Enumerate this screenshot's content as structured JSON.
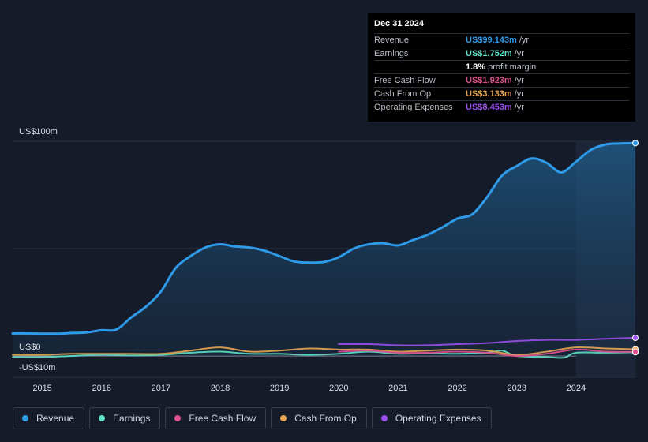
{
  "tooltip": {
    "date": "Dec 31 2024",
    "rows": [
      {
        "label": "Revenue",
        "value": "US$99.143m",
        "unit": "/yr",
        "color": "#2f9ae8"
      },
      {
        "label": "Earnings",
        "value": "US$1.752m",
        "unit": "/yr",
        "color": "#5fe0c8"
      },
      {
        "label": "",
        "value": "1.8%",
        "unit": "profit margin",
        "color": "#ffffff"
      },
      {
        "label": "Free Cash Flow",
        "value": "US$1.923m",
        "unit": "/yr",
        "color": "#e0508e"
      },
      {
        "label": "Cash From Op",
        "value": "US$3.133m",
        "unit": "/yr",
        "color": "#e8a552"
      },
      {
        "label": "Operating Expenses",
        "value": "US$8.453m",
        "unit": "/yr",
        "color": "#9b4ff0"
      }
    ]
  },
  "legend": [
    {
      "label": "Revenue",
      "color": "#2f9ae8"
    },
    {
      "label": "Earnings",
      "color": "#5fe0c8"
    },
    {
      "label": "Free Cash Flow",
      "color": "#e0508e"
    },
    {
      "label": "Cash From Op",
      "color": "#e8a552"
    },
    {
      "label": "Operating Expenses",
      "color": "#9b4ff0"
    }
  ],
  "chart_data": {
    "type": "area",
    "title": "",
    "xlabel": "",
    "ylabel": "",
    "ylim": [
      -10,
      100
    ],
    "y_tick_labels": [
      {
        "value": 100,
        "label": "US$100m"
      },
      {
        "value": 0,
        "label": "US$0"
      },
      {
        "value": -10,
        "label": "-US$10m"
      }
    ],
    "x_tick_labels": [
      "2015",
      "2016",
      "2017",
      "2018",
      "2019",
      "2020",
      "2021",
      "2022",
      "2023",
      "2024"
    ],
    "x_ticks": [
      2015,
      2016,
      2017,
      2018,
      2019,
      2020,
      2021,
      2022,
      2023,
      2024
    ],
    "xlim": [
      2014.5,
      2025.0
    ],
    "highlight_start": 2024.0,
    "series": [
      {
        "name": "Revenue",
        "color": "#2f9ae8",
        "fill": true,
        "x": [
          2014.5,
          2014.75,
          2015.0,
          2015.25,
          2015.5,
          2015.75,
          2016.0,
          2016.25,
          2016.5,
          2016.75,
          2017.0,
          2017.25,
          2017.5,
          2017.75,
          2018.0,
          2018.25,
          2018.5,
          2018.75,
          2019.0,
          2019.25,
          2019.5,
          2019.75,
          2020.0,
          2020.25,
          2020.5,
          2020.75,
          2021.0,
          2021.25,
          2021.5,
          2021.75,
          2022.0,
          2022.25,
          2022.5,
          2022.75,
          2023.0,
          2023.25,
          2023.5,
          2023.75,
          2024.0,
          2024.25,
          2024.5,
          2024.75,
          2025.0
        ],
        "values": [
          10.5,
          10.5,
          10.4,
          10.4,
          10.7,
          11.0,
          12.0,
          12.3,
          18.0,
          23.0,
          30.0,
          41.0,
          46.5,
          50.5,
          52.0,
          51.0,
          50.5,
          49.0,
          46.5,
          44.0,
          43.5,
          43.8,
          46.0,
          50.0,
          52.0,
          52.5,
          51.5,
          54.0,
          56.5,
          60.0,
          64.0,
          66.0,
          74.0,
          84.0,
          88.5,
          92.0,
          90.0,
          85.5,
          90.5,
          96.0,
          98.5,
          99.0,
          99.143
        ]
      },
      {
        "name": "Earnings",
        "color": "#5fe0c8",
        "fill": false,
        "x": [
          2014.5,
          2015.0,
          2015.5,
          2016.0,
          2016.5,
          2017.0,
          2017.5,
          2018.0,
          2018.5,
          2019.0,
          2019.5,
          2020.0,
          2020.5,
          2021.0,
          2021.5,
          2022.0,
          2022.5,
          2022.75,
          2023.0,
          2023.5,
          2023.8,
          2024.0,
          2024.5,
          2025.0
        ],
        "values": [
          -0.5,
          -0.5,
          0.0,
          0.5,
          0.2,
          0.5,
          1.5,
          2.0,
          1.0,
          1.0,
          0.5,
          1.0,
          2.0,
          1.0,
          1.2,
          1.0,
          1.5,
          2.5,
          0.0,
          -0.5,
          -0.8,
          1.5,
          1.5,
          1.752
        ]
      },
      {
        "name": "Free Cash Flow",
        "color": "#e0508e",
        "fill": false,
        "x": [
          2020.0,
          2020.5,
          2021.0,
          2021.5,
          2022.0,
          2022.5,
          2023.0,
          2023.5,
          2024.0,
          2024.5,
          2025.0
        ],
        "values": [
          2.0,
          2.5,
          1.5,
          1.5,
          2.0,
          1.5,
          0.0,
          1.0,
          3.0,
          2.0,
          1.923
        ]
      },
      {
        "name": "Cash From Op",
        "color": "#e8a552",
        "fill": false,
        "x": [
          2014.5,
          2015.0,
          2015.5,
          2016.0,
          2016.5,
          2017.0,
          2017.5,
          2018.0,
          2018.5,
          2019.0,
          2019.5,
          2020.0,
          2020.5,
          2021.0,
          2021.5,
          2022.0,
          2022.5,
          2023.0,
          2023.5,
          2024.0,
          2024.5,
          2025.0
        ],
        "values": [
          0.5,
          0.5,
          1.0,
          1.0,
          1.0,
          1.0,
          2.5,
          4.0,
          2.0,
          2.5,
          3.5,
          3.0,
          3.0,
          2.0,
          2.5,
          3.0,
          2.5,
          0.5,
          2.0,
          4.0,
          3.5,
          3.133
        ]
      },
      {
        "name": "Operating Expenses",
        "color": "#9b4ff0",
        "fill": false,
        "x": [
          2020.0,
          2020.5,
          2021.0,
          2021.5,
          2022.0,
          2022.5,
          2023.0,
          2023.5,
          2024.0,
          2024.5,
          2025.0
        ],
        "values": [
          5.5,
          5.5,
          5.0,
          5.0,
          5.5,
          6.0,
          7.0,
          7.5,
          7.5,
          8.0,
          8.453
        ]
      }
    ]
  }
}
